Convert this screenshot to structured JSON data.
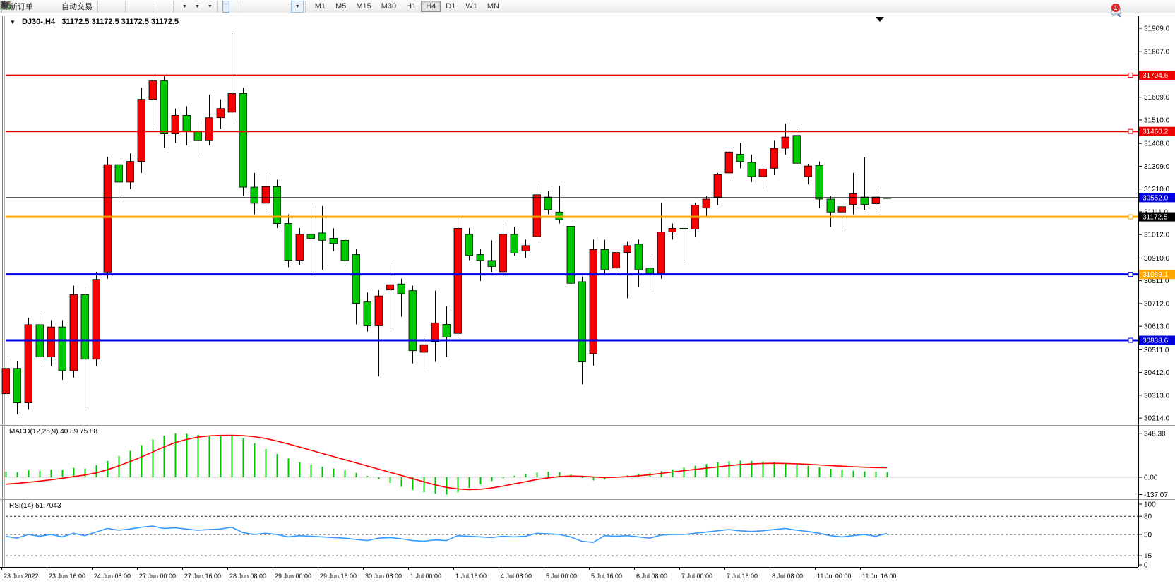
{
  "toolbar": {
    "new_order_label": "新订单",
    "autotrading_label": "自动交易",
    "timeframes": [
      "M1",
      "M5",
      "M15",
      "M30",
      "H1",
      "H4",
      "D1",
      "W1",
      "MN"
    ],
    "active_timeframe": "H4",
    "chat_badge": "1"
  },
  "chart": {
    "title_symbol": "DJ30-,H4",
    "title_quotes": "31172.5 31172.5 31172.5 31172.5",
    "macd_label": "MACD(12,26,9) 40.89 75.88",
    "rsi_label": "RSI(14) 51.7043"
  },
  "price_axis": {
    "ticks": [
      "31909.0",
      "31807.0",
      "31609.0",
      "31510.0",
      "31408.0",
      "31309.0",
      "31210.0",
      "31111.0",
      "31012.0",
      "30910.0",
      "30811.0",
      "30712.0",
      "30613.0",
      "30511.0",
      "30412.0",
      "30313.0",
      "30214.0"
    ],
    "line_labels": [
      {
        "text": "31704.6",
        "color": "#f20000"
      },
      {
        "text": "31460.2",
        "color": "#f20000"
      },
      {
        "text": "31172.5",
        "color": "#000000"
      },
      {
        "text": "31089.1",
        "color": "#ffa500"
      },
      {
        "text": "30838.6",
        "color": "#0000e0"
      },
      {
        "text": "30552.0",
        "color": "#0000e0"
      }
    ]
  },
  "macd_axis": [
    "348.38",
    "0.00",
    "-137.07"
  ],
  "rsi_axis": [
    "100",
    "80",
    "50",
    "15",
    "0"
  ],
  "time_axis": [
    "23 Jun 2022",
    "23 Jun 16:00",
    "24 Jun 08:00",
    "27 Jun 00:00",
    "27 Jun 16:00",
    "28 Jun 08:00",
    "29 Jun 00:00",
    "29 Jun 16:00",
    "30 Jun 08:00",
    "1 Jul 00:00",
    "1 Jul 16:00",
    "4 Jul 08:00",
    "5 Jul 00:00",
    "5 Jul 16:00",
    "6 Jul 08:00",
    "7 Jul 00:00",
    "7 Jul 16:00",
    "8 Jul 08:00",
    "11 Jul 00:00",
    "11 Jul 16:00"
  ],
  "h_lines": [
    {
      "price": 31704.6,
      "color": "#f20000",
      "width": 2
    },
    {
      "price": 31460.2,
      "color": "#f20000",
      "width": 2
    },
    {
      "price": 31089.1,
      "color": "#ffa500",
      "width": 3
    },
    {
      "price": 30838.6,
      "color": "#0000e0",
      "width": 3
    },
    {
      "price": 30552.0,
      "color": "#0000e0",
      "width": 3
    },
    {
      "price": 31172.5,
      "color": "#000000",
      "width": 1
    }
  ],
  "chart_data": [
    {
      "type": "candlestick",
      "title": "DJ30-,H4",
      "period": "H4",
      "up_color": "#f40000",
      "down_color": "#00c800",
      "ylim": [
        30214.0,
        31909.0
      ],
      "start_time": "23 Jun 2022 00:00",
      "candles": [
        [
          30320,
          30480,
          30300,
          30430
        ],
        [
          30430,
          30460,
          30230,
          30280
        ],
        [
          30280,
          30650,
          30250,
          30620
        ],
        [
          30620,
          30660,
          30440,
          30480
        ],
        [
          30480,
          30640,
          30440,
          30610
        ],
        [
          30610,
          30640,
          30380,
          30420
        ],
        [
          30420,
          30790,
          30390,
          30750
        ],
        [
          30750,
          30780,
          30256,
          30470
        ],
        [
          30470,
          30850,
          30440,
          30817
        ],
        [
          30849,
          31350,
          30820,
          31316
        ],
        [
          31316,
          31340,
          31150,
          31240
        ],
        [
          31240,
          31365,
          31210,
          31330
        ],
        [
          31330,
          31650,
          31280,
          31600
        ],
        [
          31600,
          31705,
          31480,
          31680
        ],
        [
          31680,
          31700,
          31390,
          31450
        ],
        [
          31450,
          31560,
          31410,
          31530
        ],
        [
          31530,
          31570,
          31400,
          31460
        ],
        [
          31460,
          31500,
          31350,
          31420
        ],
        [
          31420,
          31620,
          31400,
          31520
        ],
        [
          31520,
          31600,
          31470,
          31560
        ],
        [
          31544,
          31887,
          31500,
          31625
        ],
        [
          31625,
          31650,
          31180,
          31218
        ],
        [
          31218,
          31280,
          31100,
          31148
        ],
        [
          31148,
          31280,
          31120,
          31220
        ],
        [
          31220,
          31250,
          31040,
          31060
        ],
        [
          31060,
          31100,
          30870,
          30900
        ],
        [
          30900,
          31040,
          30880,
          31013
        ],
        [
          31013,
          31143,
          30850,
          30996
        ],
        [
          31019,
          31136,
          30859,
          30987
        ],
        [
          30996,
          31039,
          30940,
          30973
        ],
        [
          30987,
          31000,
          30876,
          30899
        ],
        [
          30925,
          30950,
          30621,
          30713
        ],
        [
          30719,
          30760,
          30590,
          30615
        ],
        [
          30615,
          30770,
          30395,
          30745
        ],
        [
          30771,
          30880,
          30600,
          30794
        ],
        [
          30797,
          30820,
          30654,
          30755
        ],
        [
          30768,
          30790,
          30452,
          30507
        ],
        [
          30500,
          30560,
          30412,
          30533
        ],
        [
          30546,
          30768,
          30458,
          30628
        ],
        [
          30621,
          30700,
          30480,
          30566
        ],
        [
          30582,
          31087,
          30560,
          31039
        ],
        [
          31013,
          31040,
          30900,
          30921
        ],
        [
          30925,
          30950,
          30810,
          30899
        ],
        [
          30899,
          30987,
          30850,
          30873
        ],
        [
          30850,
          31060,
          30830,
          31013
        ],
        [
          31013,
          31045,
          30920,
          30931
        ],
        [
          30941,
          30990,
          30910,
          30964
        ],
        [
          31003,
          31224,
          30980,
          31185
        ],
        [
          31175,
          31200,
          31100,
          31120
        ],
        [
          31110,
          31224,
          31060,
          31077
        ],
        [
          31048,
          31070,
          30780,
          30800
        ],
        [
          30807,
          30830,
          30360,
          30458
        ],
        [
          30494,
          30990,
          30442,
          30947
        ],
        [
          30947,
          30989,
          30840,
          30859
        ],
        [
          30866,
          30950,
          30840,
          30934
        ],
        [
          30934,
          30980,
          30735,
          30964
        ],
        [
          30970,
          30990,
          30784,
          30859
        ],
        [
          30866,
          30920,
          30771,
          30843
        ],
        [
          30843,
          31150,
          30820,
          31023
        ],
        [
          31023,
          31060,
          30990,
          31039
        ],
        [
          31039,
          31060,
          30899,
          31036
        ],
        [
          31036,
          31150,
          31000,
          31140
        ],
        [
          31127,
          31180,
          31090,
          31166
        ],
        [
          31175,
          31280,
          31140,
          31273
        ],
        [
          31280,
          31380,
          31250,
          31371
        ],
        [
          31361,
          31410,
          31300,
          31329
        ],
        [
          31326,
          31360,
          31240,
          31264
        ],
        [
          31264,
          31310,
          31210,
          31297
        ],
        [
          31300,
          31420,
          31270,
          31387
        ],
        [
          31387,
          31495,
          31360,
          31436
        ],
        [
          31443,
          31469,
          31300,
          31322
        ],
        [
          31264,
          31320,
          31230,
          31310
        ],
        [
          31313,
          31330,
          31127,
          31166
        ],
        [
          31166,
          31180,
          31045,
          31110
        ],
        [
          31110,
          31160,
          31038,
          31133
        ],
        [
          31143,
          31280,
          31100,
          31189
        ],
        [
          31175,
          31348,
          31120,
          31143
        ],
        [
          31146,
          31210,
          31120,
          31175
        ],
        [
          31172.5,
          31172.5,
          31172.5,
          31172.5
        ]
      ]
    },
    {
      "type": "bar",
      "name": "MACD histogram",
      "title": "MACD(12,26,9)",
      "color": "#00c800",
      "ylim": [
        -137.07,
        348.38
      ],
      "values": [
        45,
        40,
        55,
        50,
        60,
        58,
        75,
        70,
        95,
        130,
        170,
        210,
        255,
        300,
        330,
        348,
        345,
        338,
        330,
        325,
        335,
        310,
        270,
        225,
        185,
        150,
        120,
        100,
        85,
        70,
        55,
        35,
        10,
        -15,
        -45,
        -75,
        -100,
        -118,
        -130,
        -137,
        -120,
        -85,
        -55,
        -30,
        -8,
        12,
        25,
        38,
        45,
        40,
        22,
        -5,
        -25,
        -18,
        0,
        15,
        28,
        35,
        48,
        62,
        78,
        92,
        105,
        118,
        128,
        132,
        130,
        126,
        120,
        112,
        102,
        92,
        80,
        68,
        58,
        52,
        47,
        44,
        40.89
      ],
      "signal": {
        "name": "MACD signal",
        "color": "#ff0000",
        "values": [
          -55,
          -48,
          -40,
          -30,
          -20,
          -8,
          5,
          18,
          35,
          60,
          90,
          125,
          160,
          200,
          240,
          275,
          300,
          318,
          328,
          332,
          333,
          330,
          322,
          308,
          288,
          265,
          240,
          215,
          190,
          165,
          140,
          115,
          90,
          65,
          40,
          15,
          -10,
          -35,
          -60,
          -80,
          -92,
          -98,
          -95,
          -85,
          -70,
          -52,
          -35,
          -18,
          -5,
          5,
          10,
          8,
          2,
          -2,
          0,
          5,
          12,
          20,
          30,
          42,
          52,
          62,
          72,
          82,
          92,
          100,
          106,
          110,
          111,
          110,
          107,
          103,
          98,
          93,
          88,
          84,
          80,
          77,
          75.88
        ]
      }
    },
    {
      "type": "line",
      "name": "RSI",
      "title": "RSI(14)",
      "color": "#3399ff",
      "ylim": [
        0,
        100
      ],
      "levels": [
        80,
        50,
        15
      ],
      "values": [
        47,
        44,
        50,
        47,
        50,
        46,
        52,
        48,
        54,
        60,
        57,
        59,
        62,
        64,
        60,
        61,
        59,
        57,
        58,
        59,
        62,
        53,
        50,
        52,
        50,
        46,
        48,
        47,
        46,
        45,
        44,
        42,
        40,
        44,
        45,
        43,
        40,
        39,
        41,
        40,
        48,
        47,
        46,
        45,
        47,
        46,
        47,
        52,
        51,
        50,
        46,
        39,
        37,
        48,
        47,
        48,
        46,
        44,
        49,
        50,
        50,
        52,
        54,
        56,
        58,
        56,
        55,
        56,
        58,
        60,
        57,
        55,
        52,
        48,
        46,
        48,
        50,
        47,
        51.7
      ]
    }
  ]
}
